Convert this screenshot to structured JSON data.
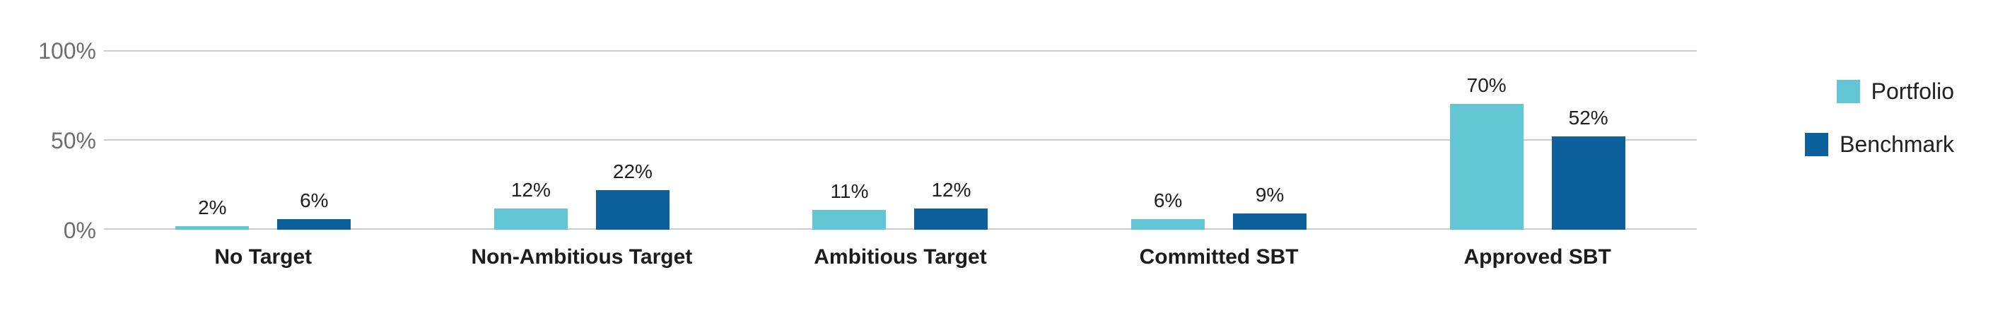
{
  "chart_data": {
    "type": "bar",
    "title": "",
    "categories": [
      "No Target",
      "Non-Ambitious Target",
      "Ambitious Target",
      "Committed SBT",
      "Approved SBT"
    ],
    "series": [
      {
        "name": "Portfolio",
        "color": "#63C6D5",
        "values": [
          2,
          12,
          11,
          6,
          70
        ]
      },
      {
        "name": "Benchmark",
        "color": "#0C609C",
        "values": [
          6,
          22,
          12,
          9,
          52
        ]
      }
    ],
    "value_suffix": "%",
    "y_ticks": [
      {
        "label": "100%",
        "value": 100
      },
      {
        "label": "50%",
        "value": 50
      },
      {
        "label": "0%",
        "value": 0
      }
    ],
    "ylim": [
      0,
      100
    ],
    "grid": true,
    "legend_position": "right",
    "colors": {
      "gridline": "#CCCCCC",
      "axis_label": "#6E6E6E",
      "value_label": "#1F1F1F",
      "category_label": "#1C1C1C",
      "legend_label": "#212121",
      "background": "#FFFFFF"
    }
  },
  "legend": {
    "items": [
      {
        "label": "Portfolio",
        "color": "#63C6D5"
      },
      {
        "label": "Benchmark",
        "color": "#0C609C"
      }
    ]
  }
}
